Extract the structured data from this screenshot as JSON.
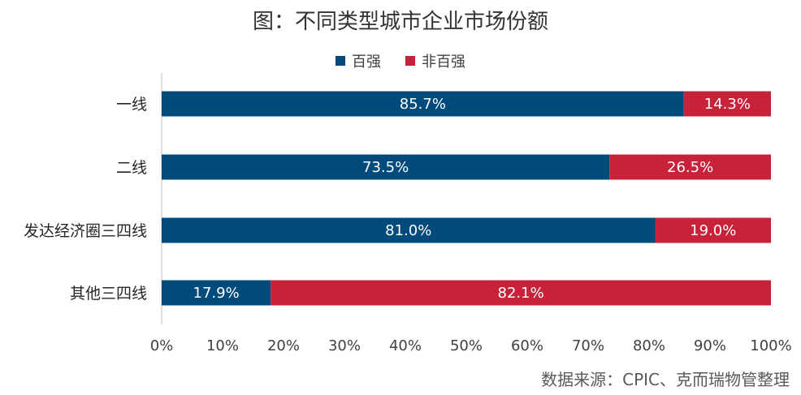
{
  "chart_data": {
    "type": "bar",
    "orientation": "horizontal",
    "stacked": true,
    "title": "图：不同类型城市企业市场份额",
    "categories": [
      "一线",
      "二线",
      "发达经济圈三四线",
      "其他三四线"
    ],
    "series": [
      {
        "name": "百强",
        "color": "#004a7c",
        "values": [
          85.7,
          73.5,
          81.0,
          17.9
        ],
        "labels": [
          "85.7%",
          "73.5%",
          "81.0%",
          "17.9%"
        ]
      },
      {
        "name": "非百强",
        "color": "#c8213a",
        "values": [
          14.3,
          26.5,
          19.0,
          82.1
        ],
        "labels": [
          "14.3%",
          "26.5%",
          "19.0%",
          "82.1%"
        ]
      }
    ],
    "xlim": [
      0,
      100
    ],
    "xticks": [
      "0%",
      "10%",
      "20%",
      "30%",
      "40%",
      "50%",
      "60%",
      "70%",
      "80%",
      "90%",
      "100%"
    ],
    "grid": false,
    "legend_position": "top"
  },
  "source": "数据来源：CPIC、克而瑞物管整理"
}
